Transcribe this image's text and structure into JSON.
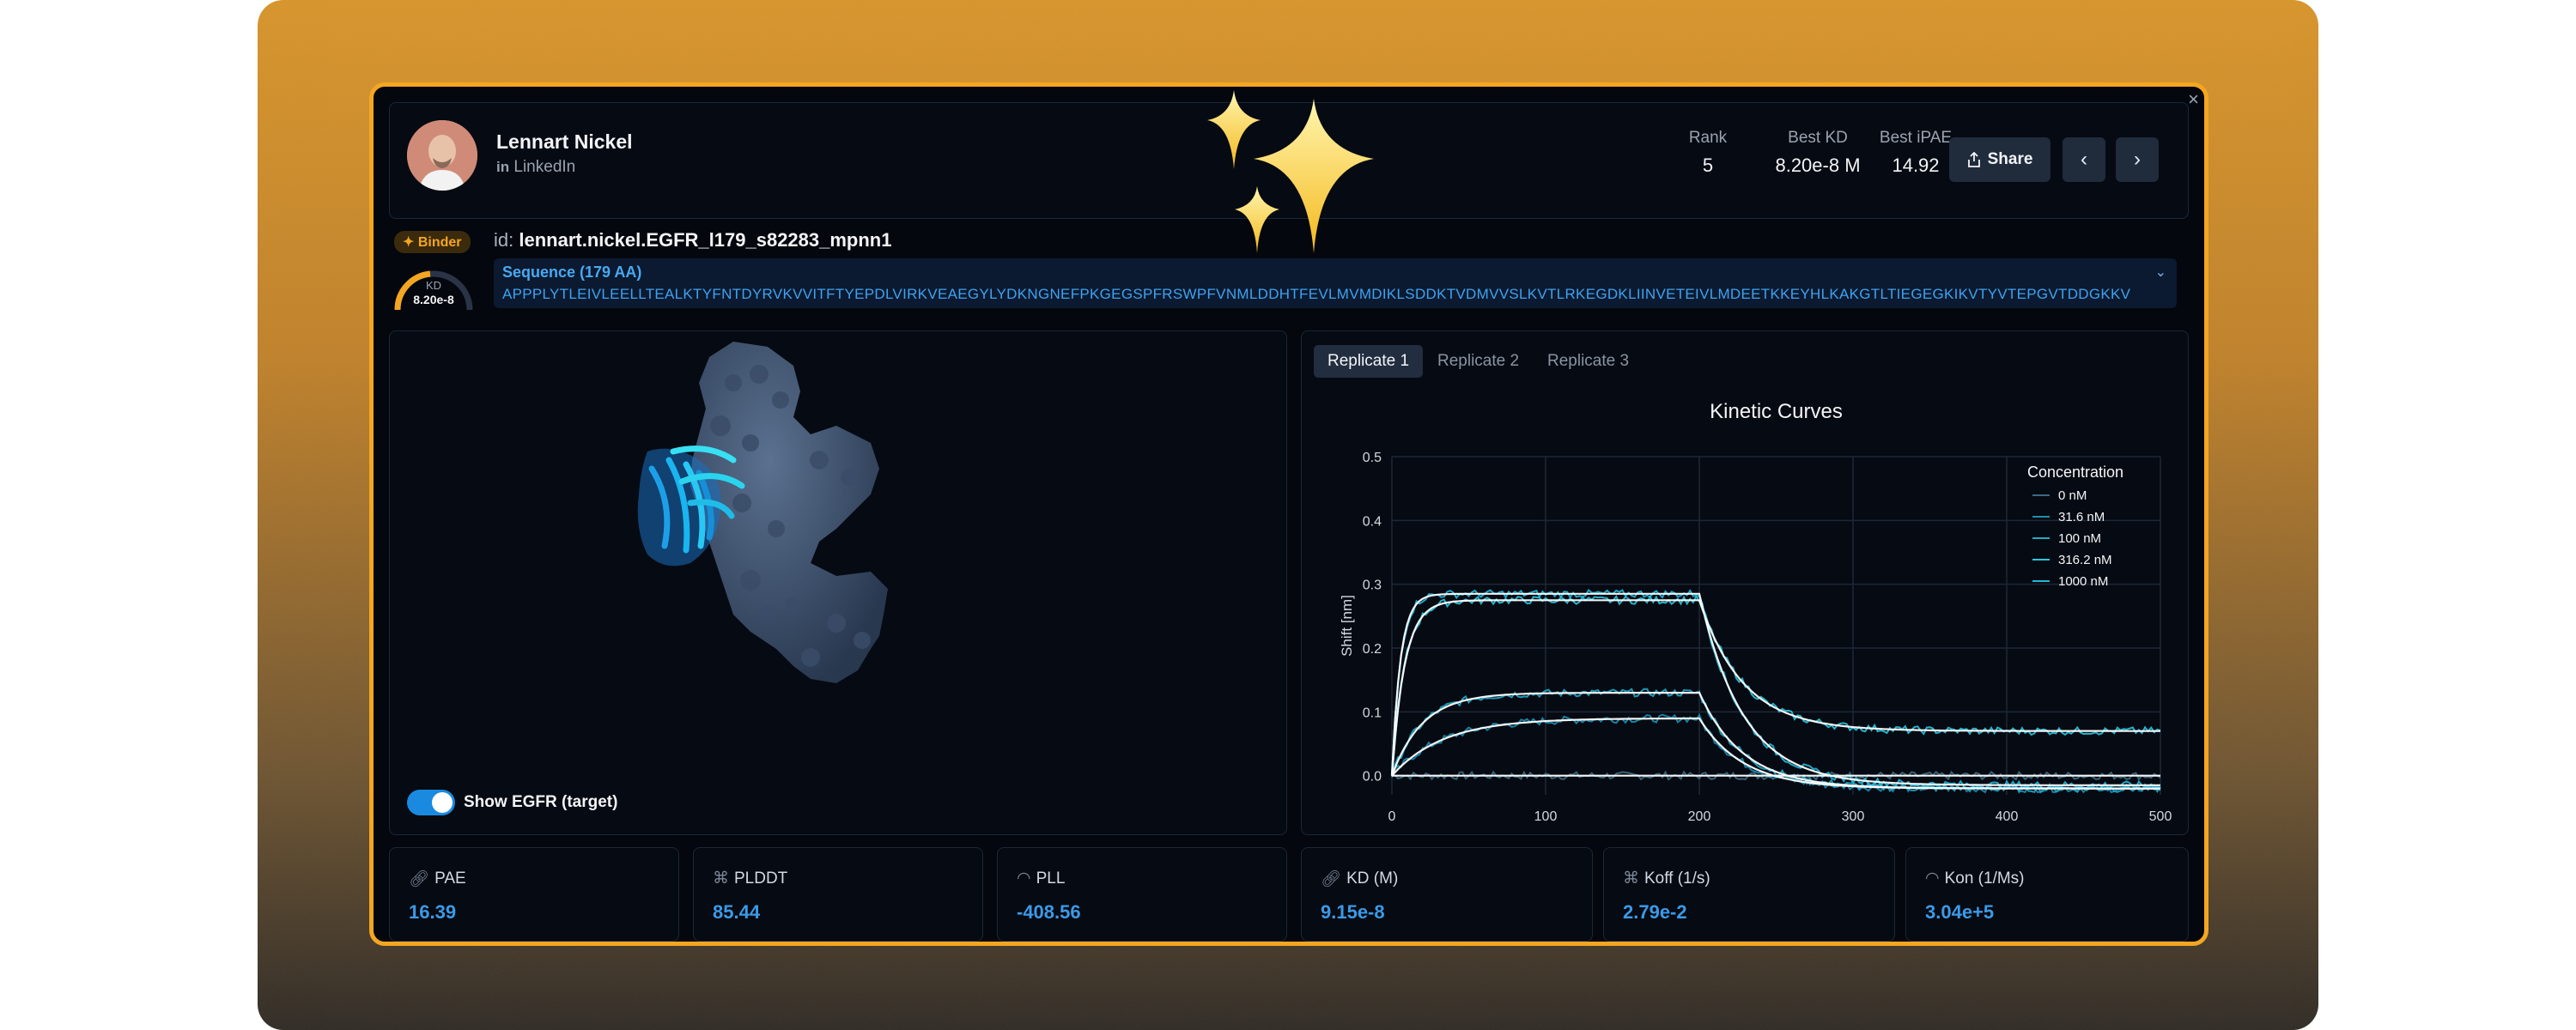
{
  "profile": {
    "name": "Lennart Nickel",
    "link_label": "LinkedIn"
  },
  "stats": [
    {
      "label": "Rank",
      "value": "5"
    },
    {
      "label": "Best KD",
      "value": "8.20e-8 M"
    },
    {
      "label": "Best iPAE",
      "value": "14.92"
    }
  ],
  "actions": {
    "share_label": "Share",
    "prev_icon": "chevron-left-icon",
    "next_icon": "chevron-right-icon",
    "close": "×"
  },
  "binder_badge": "Binder",
  "kd_gauge": {
    "label": "KD",
    "value": "8.20e-8"
  },
  "design": {
    "id_prefix": "id:",
    "id": "lennart.nickel.EGFR_l179_s82283_mpnn1",
    "sequence_title": "Sequence (179 AA)",
    "sequence": "APPPLYTLEIVLEELLTEALKTYFNTDYRVKVVITFTYEPDLVIRKVEAEGYLYDKNGNEFPKGEGSPFRSWPFVNMLDDHTFEVLMVMDIKLSDDKTVDMVVSLKVTLRKEGDKLIINVETEIVLMDEETKKEYHLKAKGTLTIEGEGKIKVTYVTEPGVTDDGKKV"
  },
  "viewer": {
    "toggle_label": "Show EGFR (target)",
    "toggle_on": true
  },
  "tabs": [
    "Replicate 1",
    "Replicate 2",
    "Replicate 3"
  ],
  "active_tab": 0,
  "metrics_left": [
    {
      "label": "PAE",
      "value": "16.39",
      "icon": "link-icon"
    },
    {
      "label": "PLDDT",
      "value": "85.44",
      "icon": "network-icon"
    },
    {
      "label": "PLL",
      "value": "-408.56",
      "icon": "gauge-icon"
    }
  ],
  "metrics_right": [
    {
      "label": "KD (M)",
      "value": "9.15e-8",
      "icon": "link-icon"
    },
    {
      "label": "Koff (1/s)",
      "value": "2.79e-2",
      "icon": "network-icon"
    },
    {
      "label": "Kon (1/Ms)",
      "value": "3.04e+5",
      "icon": "gauge-icon"
    }
  ],
  "colors": {
    "accent": "#f4a622",
    "value_blue": "#3b9ae8",
    "fit_line": "#ffffff",
    "data_cyan": "#25c6e0"
  },
  "chart_data": {
    "type": "line",
    "title": "Kinetic Curves",
    "xlabel": "",
    "ylabel": "Shift [nm]",
    "xlim": [
      0,
      500
    ],
    "ylim": [
      -0.03,
      0.5
    ],
    "x_ticks": [
      0,
      100,
      200,
      300,
      400,
      500
    ],
    "y_ticks": [
      0.0,
      0.1,
      0.2,
      0.3,
      0.4,
      0.5
    ],
    "grid": true,
    "legend_title": "Concentration",
    "legend_position": "top-right",
    "association_end": 200,
    "series": [
      {
        "name": "0 nM",
        "plateau": 0.0,
        "k_on": 0.05,
        "end": 0.0
      },
      {
        "name": "31.6 nM",
        "plateau": 0.09,
        "k_on": 0.03,
        "end": -0.02
      },
      {
        "name": "100 nM",
        "plateau": 0.13,
        "k_on": 0.05,
        "end": -0.02
      },
      {
        "name": "316.2 nM",
        "plateau": 0.275,
        "k_on": 0.12,
        "end": 0.07
      },
      {
        "name": "1000 nM",
        "plateau": 0.285,
        "k_on": 0.18,
        "end": -0.015
      }
    ]
  }
}
